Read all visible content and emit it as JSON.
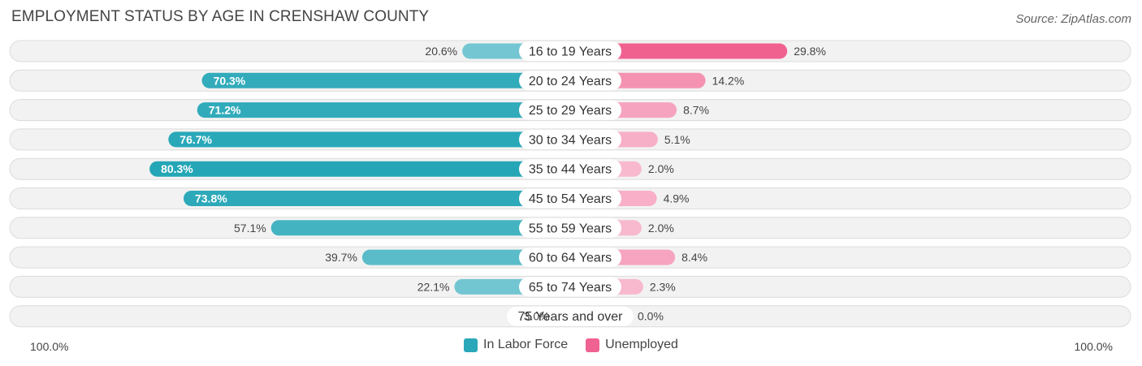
{
  "title": "EMPLOYMENT STATUS BY AGE IN CRENSHAW COUNTY",
  "source": "Source: ZipAtlas.com",
  "axis": {
    "left_label": "100.0%",
    "right_label": "100.0%"
  },
  "legend": [
    {
      "label": "In Labor Force",
      "color": "#2aa7b8"
    },
    {
      "label": "Unemployed",
      "color": "#f06292"
    }
  ],
  "chart_data": {
    "type": "bar",
    "orientation": "horizontal-diverging",
    "title": "EMPLOYMENT STATUS BY AGE IN CRENSHAW COUNTY",
    "categories": [
      "16 to 19 Years",
      "20 to 24 Years",
      "25 to 29 Years",
      "30 to 34 Years",
      "35 to 44 Years",
      "45 to 54 Years",
      "55 to 59 Years",
      "60 to 64 Years",
      "65 to 74 Years",
      "75 Years and over"
    ],
    "series": [
      {
        "name": "In Labor Force",
        "values": [
          20.6,
          70.3,
          71.2,
          76.7,
          80.3,
          73.8,
          57.1,
          39.7,
          22.1,
          3.0
        ],
        "labels": [
          "20.6%",
          "70.3%",
          "71.2%",
          "76.7%",
          "80.3%",
          "73.8%",
          "57.1%",
          "39.7%",
          "22.1%",
          "3.0%"
        ]
      },
      {
        "name": "Unemployed",
        "values": [
          29.8,
          14.2,
          8.7,
          5.1,
          2.0,
          4.9,
          2.0,
          8.4,
          2.3,
          0.0
        ],
        "labels": [
          "29.8%",
          "14.2%",
          "8.7%",
          "5.1%",
          "2.0%",
          "4.9%",
          "2.0%",
          "8.4%",
          "2.3%",
          "0.0%"
        ]
      }
    ],
    "xlim": [
      -100,
      100
    ],
    "xlabel_left": "100.0%",
    "xlabel_right": "100.0%"
  }
}
